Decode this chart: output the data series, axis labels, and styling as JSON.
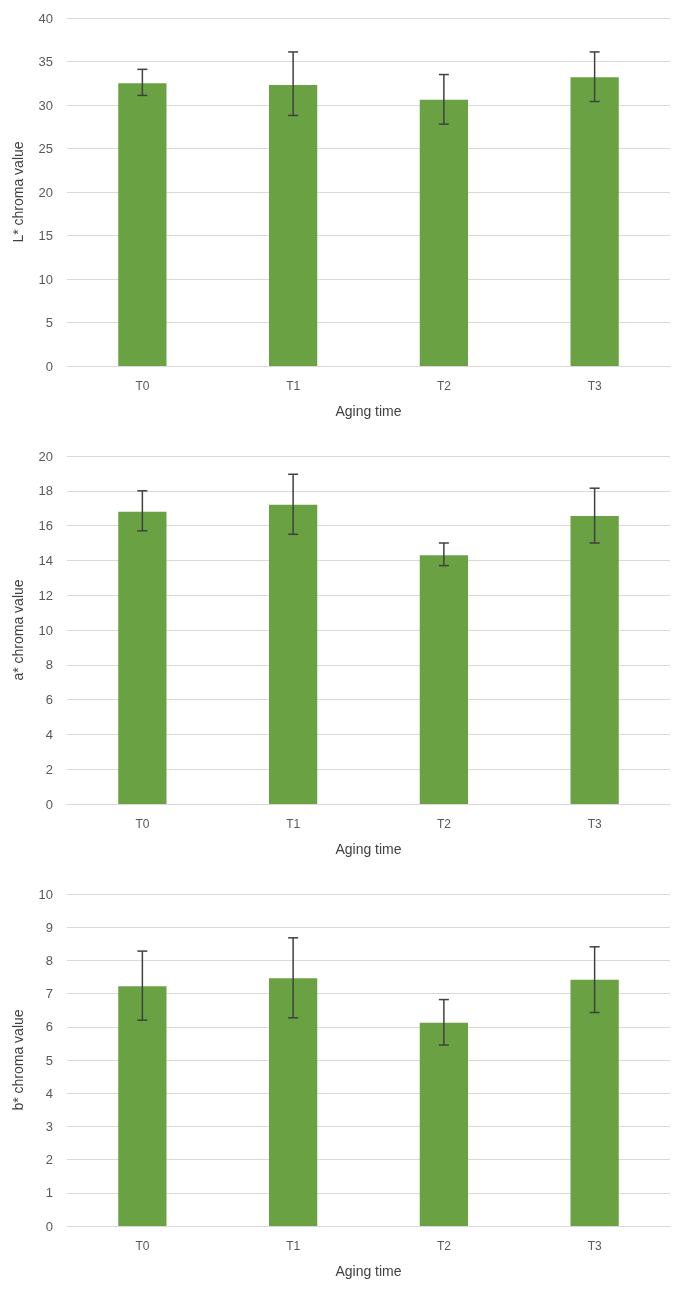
{
  "chart_data": [
    {
      "type": "bar",
      "xlabel": "Aging time",
      "ylabel": "L* chroma value",
      "categories": [
        "T0",
        "T1",
        "T2",
        "T3"
      ],
      "color": "#6aa142",
      "values": [
        32.5,
        32.3,
        30.6,
        33.2
      ],
      "errors": [
        [
          31.1,
          34.1
        ],
        [
          28.8,
          36.1
        ],
        [
          27.8,
          33.5
        ],
        [
          30.4,
          36.1
        ]
      ],
      "ylim": [
        0,
        40
      ],
      "yticks": [
        0,
        5,
        10,
        15,
        20,
        25,
        30,
        35,
        40
      ],
      "grid": "y"
    },
    {
      "type": "bar",
      "xlabel": "Aging time",
      "ylabel": "a* chroma value",
      "categories": [
        "T0",
        "T1",
        "T2",
        "T3"
      ],
      "color": "#6aa142",
      "values": [
        16.8,
        17.2,
        14.3,
        16.55
      ],
      "errors": [
        [
          15.7,
          18.0
        ],
        [
          15.5,
          18.95
        ],
        [
          13.7,
          15.0
        ],
        [
          15.0,
          18.15
        ]
      ],
      "ylim": [
        0,
        20
      ],
      "yticks": [
        0,
        2,
        4,
        6,
        8,
        10,
        12,
        14,
        16,
        18,
        20
      ],
      "grid": "y"
    },
    {
      "type": "bar",
      "xlabel": "Aging time",
      "ylabel": "b* chroma value",
      "categories": [
        "T0",
        "T1",
        "T2",
        "T3"
      ],
      "color": "#6aa142",
      "values": [
        7.22,
        7.46,
        6.12,
        7.42
      ],
      "errors": [
        [
          6.2,
          8.28
        ],
        [
          6.27,
          8.68
        ],
        [
          5.45,
          6.82
        ],
        [
          6.43,
          8.41
        ]
      ],
      "ylim": [
        0,
        10
      ],
      "yticks": [
        0,
        1,
        2,
        3,
        4,
        5,
        6,
        7,
        8,
        9,
        10
      ],
      "grid": "y"
    }
  ]
}
